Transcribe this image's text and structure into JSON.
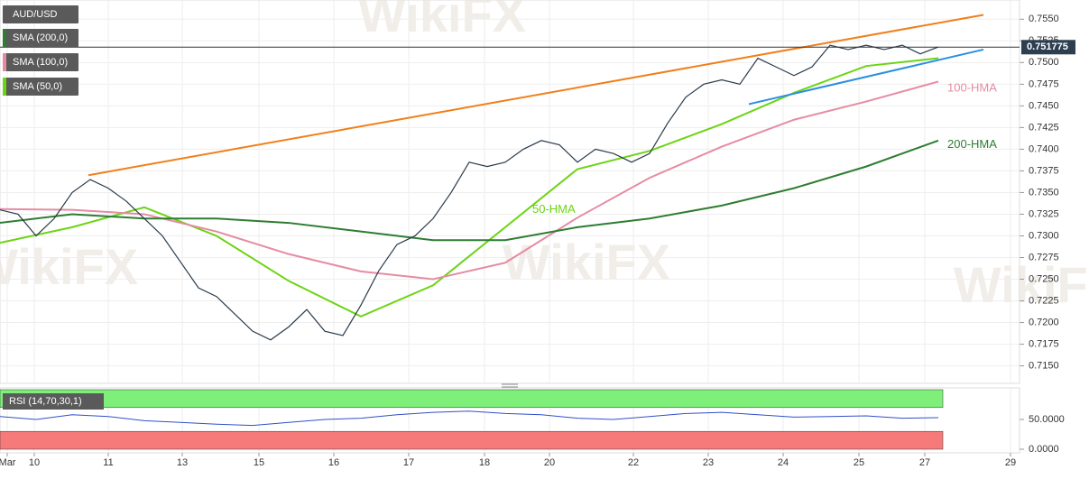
{
  "chart_data": {
    "type": "line",
    "symbol": "AUD/USD",
    "indicators": [
      "SMA (200,0)",
      "SMA (100,0)",
      "SMA (50,0)"
    ],
    "indicator_colors": [
      "#2e7d32",
      "#e58ca3",
      "#6cd414"
    ],
    "watermark": "WikiFX",
    "xlim": [
      0,
      113
    ],
    "xticks": [
      {
        "value": 0.8,
        "label": "Mar"
      },
      {
        "value": 3.8,
        "label": "10"
      },
      {
        "value": 12.0,
        "label": "11"
      },
      {
        "value": 20.2,
        "label": "13"
      },
      {
        "value": 28.7,
        "label": "15"
      },
      {
        "value": 37.0,
        "label": "16"
      },
      {
        "value": 45.3,
        "label": "17"
      },
      {
        "value": 53.7,
        "label": "18"
      },
      {
        "value": 60.9,
        "label": "20"
      },
      {
        "value": 70.2,
        "label": "22"
      },
      {
        "value": 78.5,
        "label": "23"
      },
      {
        "value": 86.8,
        "label": "24"
      },
      {
        "value": 95.2,
        "label": "25"
      },
      {
        "value": 102.5,
        "label": "27"
      },
      {
        "value": 112.0,
        "label": "29"
      }
    ],
    "ylim": [
      0.7135,
      0.7568
    ],
    "yticks": [
      {
        "value": 0.715,
        "label": "0.7150"
      },
      {
        "value": 0.7175,
        "label": "0.7175"
      },
      {
        "value": 0.72,
        "label": "0.7200"
      },
      {
        "value": 0.7225,
        "label": "0.7225"
      },
      {
        "value": 0.725,
        "label": "0.7250"
      },
      {
        "value": 0.7275,
        "label": "0.7275"
      },
      {
        "value": 0.73,
        "label": "0.7300"
      },
      {
        "value": 0.7325,
        "label": "0.7325"
      },
      {
        "value": 0.735,
        "label": "0.7350"
      },
      {
        "value": 0.7375,
        "label": "0.7375"
      },
      {
        "value": 0.74,
        "label": "0.7400"
      },
      {
        "value": 0.7425,
        "label": "0.7425"
      },
      {
        "value": 0.745,
        "label": "0.7450"
      },
      {
        "value": 0.7475,
        "label": "0.7475"
      },
      {
        "value": 0.75,
        "label": "0.7500"
      },
      {
        "value": 0.7525,
        "label": "0.7525"
      },
      {
        "value": 0.755,
        "label": "0.7550"
      }
    ],
    "grid": true,
    "current_price": 0.751775,
    "price": {
      "color": "#2a3a4a",
      "x": [
        0,
        2,
        4,
        6,
        8,
        10,
        12,
        14,
        16,
        18,
        20,
        22,
        24,
        26,
        28,
        30,
        32,
        34,
        36,
        38,
        40,
        42,
        44,
        46,
        48,
        50,
        52,
        54,
        56,
        58,
        60,
        62,
        64,
        66,
        68,
        70,
        72,
        74,
        76,
        78,
        80,
        82,
        84,
        86,
        88,
        90,
        92,
        94,
        96,
        98,
        100,
        102,
        104
      ],
      "values": [
        0.733,
        0.7325,
        0.73,
        0.732,
        0.735,
        0.7365,
        0.7355,
        0.734,
        0.732,
        0.73,
        0.727,
        0.724,
        0.723,
        0.721,
        0.719,
        0.718,
        0.7195,
        0.7215,
        0.719,
        0.7185,
        0.722,
        0.726,
        0.729,
        0.73,
        0.732,
        0.735,
        0.7385,
        0.738,
        0.7385,
        0.74,
        0.741,
        0.7405,
        0.7385,
        0.74,
        0.7395,
        0.7385,
        0.7395,
        0.743,
        0.746,
        0.7475,
        0.748,
        0.7475,
        0.7505,
        0.7495,
        0.7485,
        0.7495,
        0.752,
        0.7515,
        0.752,
        0.7515,
        0.752,
        0.751,
        0.7518
      ]
    },
    "series": [
      {
        "name": "50-HMA",
        "color": "#6cd414",
        "x": [
          0,
          8,
          16,
          24,
          32,
          40,
          48,
          56,
          64,
          72,
          80,
          88,
          96,
          104
        ],
        "values": [
          0.7292,
          0.731,
          0.7333,
          0.73,
          0.7248,
          0.7207,
          0.7243,
          0.731,
          0.7377,
          0.7398,
          0.7429,
          0.7465,
          0.7496,
          0.7505
        ]
      },
      {
        "name": "100-HMA",
        "color": "#e58ca3",
        "x": [
          0,
          8,
          16,
          24,
          32,
          40,
          48,
          56,
          64,
          72,
          80,
          88,
          96,
          104
        ],
        "values": [
          0.7331,
          0.733,
          0.7325,
          0.7305,
          0.7279,
          0.7259,
          0.725,
          0.7269,
          0.7321,
          0.7367,
          0.7403,
          0.7434,
          0.7455,
          0.7478
        ]
      },
      {
        "name": "200-HMA",
        "color": "#2e7d32",
        "x": [
          0,
          8,
          16,
          24,
          32,
          40,
          48,
          56,
          64,
          72,
          80,
          88,
          96,
          104
        ],
        "values": [
          0.7315,
          0.7325,
          0.732,
          0.732,
          0.7315,
          0.7305,
          0.7295,
          0.7295,
          0.731,
          0.732,
          0.7335,
          0.7355,
          0.738,
          0.741
        ]
      }
    ],
    "trendlines": [
      {
        "color": "#f07f1a",
        "x": [
          9.8,
          109
        ],
        "values": [
          0.737,
          0.7555
        ]
      },
      {
        "color": "#2a8fe0",
        "x": [
          83,
          109
        ],
        "values": [
          0.7452,
          0.7515
        ]
      }
    ],
    "rsi": {
      "label": "RSI (14,70,30,1)",
      "color": "#3050c8",
      "ylim": [
        0,
        100
      ],
      "yticks": [
        {
          "value": 0,
          "label": "0.0000"
        },
        {
          "value": 50,
          "label": "50.0000"
        }
      ],
      "overbought": 70,
      "oversold": 30,
      "x": [
        0,
        4,
        8,
        12,
        16,
        20,
        24,
        28,
        32,
        36,
        40,
        44,
        48,
        52,
        56,
        60,
        64,
        68,
        72,
        76,
        80,
        84,
        88,
        92,
        96,
        100,
        104
      ],
      "values": [
        55,
        50,
        58,
        55,
        48,
        45,
        42,
        40,
        45,
        50,
        52,
        58,
        62,
        64,
        60,
        58,
        52,
        50,
        55,
        60,
        62,
        58,
        54,
        55,
        56,
        52,
        53
      ]
    }
  }
}
